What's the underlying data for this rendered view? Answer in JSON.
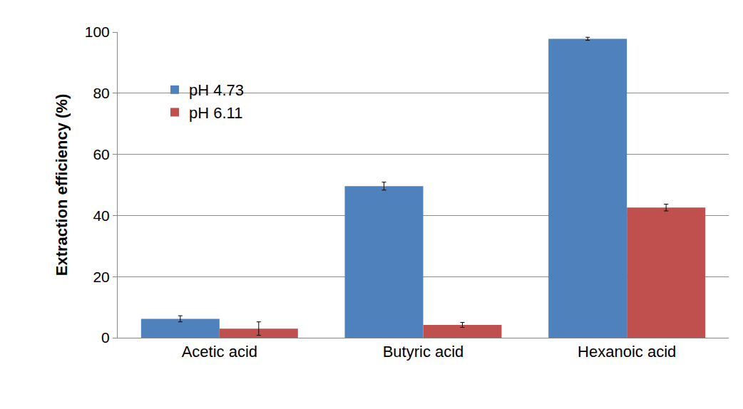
{
  "chart_data": {
    "type": "bar",
    "y_label": "Extraction efficiency (%)",
    "categories": [
      "Acetic acid",
      "Butyric acid",
      "Hexanoic acid"
    ],
    "series": [
      {
        "name": "pH 4.73",
        "color": "#4f81bd",
        "values": [
          6.2,
          49.6,
          97.8
        ],
        "errors": [
          1.0,
          1.3,
          0.5
        ]
      },
      {
        "name": "pH 6.11",
        "color": "#c0504d",
        "values": [
          3.0,
          4.2,
          42.6
        ],
        "errors": [
          2.2,
          0.8,
          1.1
        ]
      }
    ],
    "ylim": [
      0,
      100
    ],
    "yticks": [
      0,
      20,
      40,
      60,
      80,
      100
    ],
    "grid": true,
    "legend": "upper left"
  }
}
